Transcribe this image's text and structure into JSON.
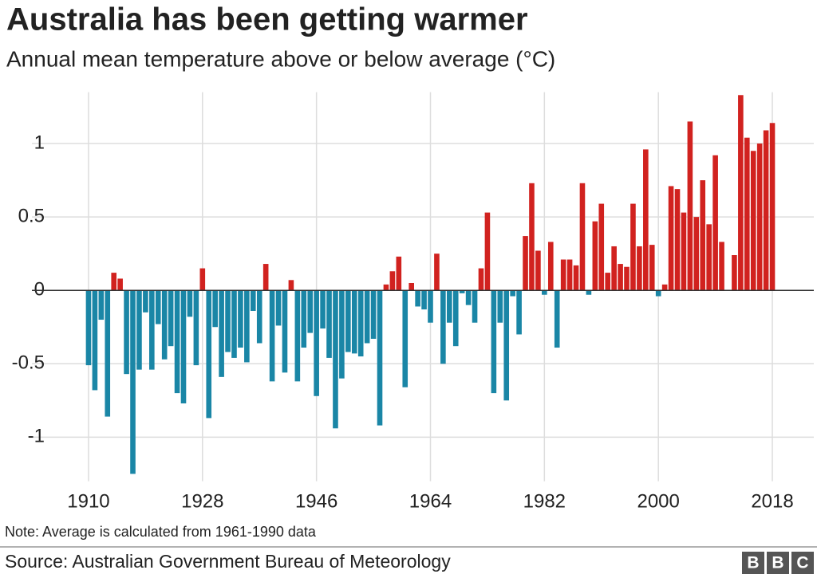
{
  "chart_data": {
    "type": "bar",
    "title": "Australia has been getting warmer",
    "subtitle": "Annual mean temperature above or below average (°C)",
    "x": [
      1910,
      1911,
      1912,
      1913,
      1914,
      1915,
      1916,
      1917,
      1918,
      1919,
      1920,
      1921,
      1922,
      1923,
      1924,
      1925,
      1926,
      1927,
      1928,
      1929,
      1930,
      1931,
      1932,
      1933,
      1934,
      1935,
      1936,
      1937,
      1938,
      1939,
      1940,
      1941,
      1942,
      1943,
      1944,
      1945,
      1946,
      1947,
      1948,
      1949,
      1950,
      1951,
      1952,
      1953,
      1954,
      1955,
      1956,
      1957,
      1958,
      1959,
      1960,
      1961,
      1962,
      1963,
      1964,
      1965,
      1966,
      1967,
      1968,
      1969,
      1970,
      1971,
      1972,
      1973,
      1974,
      1975,
      1976,
      1977,
      1978,
      1979,
      1980,
      1981,
      1982,
      1983,
      1984,
      1985,
      1986,
      1987,
      1988,
      1989,
      1990,
      1991,
      1992,
      1993,
      1994,
      1995,
      1996,
      1997,
      1998,
      1999,
      2000,
      2001,
      2002,
      2003,
      2004,
      2005,
      2006,
      2007,
      2008,
      2009,
      2010,
      2011,
      2012,
      2013,
      2014,
      2015,
      2016,
      2017,
      2018
    ],
    "values": [
      -0.51,
      -0.68,
      -0.2,
      -0.86,
      0.12,
      0.08,
      -0.57,
      -1.25,
      -0.54,
      -0.15,
      -0.54,
      -0.23,
      -0.47,
      -0.38,
      -0.7,
      -0.77,
      -0.18,
      -0.51,
      0.15,
      -0.87,
      -0.25,
      -0.59,
      -0.42,
      -0.46,
      -0.39,
      -0.49,
      -0.14,
      -0.36,
      0.18,
      -0.62,
      -0.24,
      -0.56,
      0.07,
      -0.62,
      -0.39,
      -0.29,
      -0.72,
      -0.26,
      -0.46,
      -0.94,
      -0.6,
      -0.42,
      -0.43,
      -0.45,
      -0.36,
      -0.33,
      -0.92,
      0.04,
      0.13,
      0.23,
      -0.66,
      0.05,
      -0.11,
      -0.13,
      -0.22,
      0.25,
      -0.5,
      -0.22,
      -0.38,
      -0.02,
      -0.1,
      -0.22,
      0.15,
      0.53,
      -0.7,
      -0.22,
      -0.75,
      -0.04,
      -0.3,
      0.37,
      0.73,
      0.27,
      -0.03,
      0.33,
      -0.39,
      0.21,
      0.21,
      0.17,
      0.73,
      -0.03,
      0.47,
      0.59,
      0.12,
      0.3,
      0.18,
      0.16,
      0.59,
      0.3,
      0.96,
      0.31,
      -0.04,
      0.04,
      0.71,
      0.69,
      0.53,
      1.15,
      0.5,
      0.75,
      0.45,
      0.92,
      0.33,
      0,
      0.24,
      1.33,
      1.04,
      0.95,
      1.0,
      1.09,
      1.14
    ],
    "positive_color": "#d1221f",
    "negative_color": "#1a86a6",
    "xlim": [
      1909.4,
      2018.6
    ],
    "xticks": [
      1910,
      1928,
      1946,
      1964,
      1982,
      2000,
      2018
    ],
    "ylim": [
      -1.3,
      1.35
    ],
    "yticks": [
      -1,
      -0.5,
      0,
      0.5,
      1
    ],
    "grid": true,
    "note": "Note: Average is calculated from 1961-1990 data",
    "source": "Source: Australian Government Bureau of Meteorology",
    "logo": [
      "B",
      "B",
      "C"
    ]
  }
}
